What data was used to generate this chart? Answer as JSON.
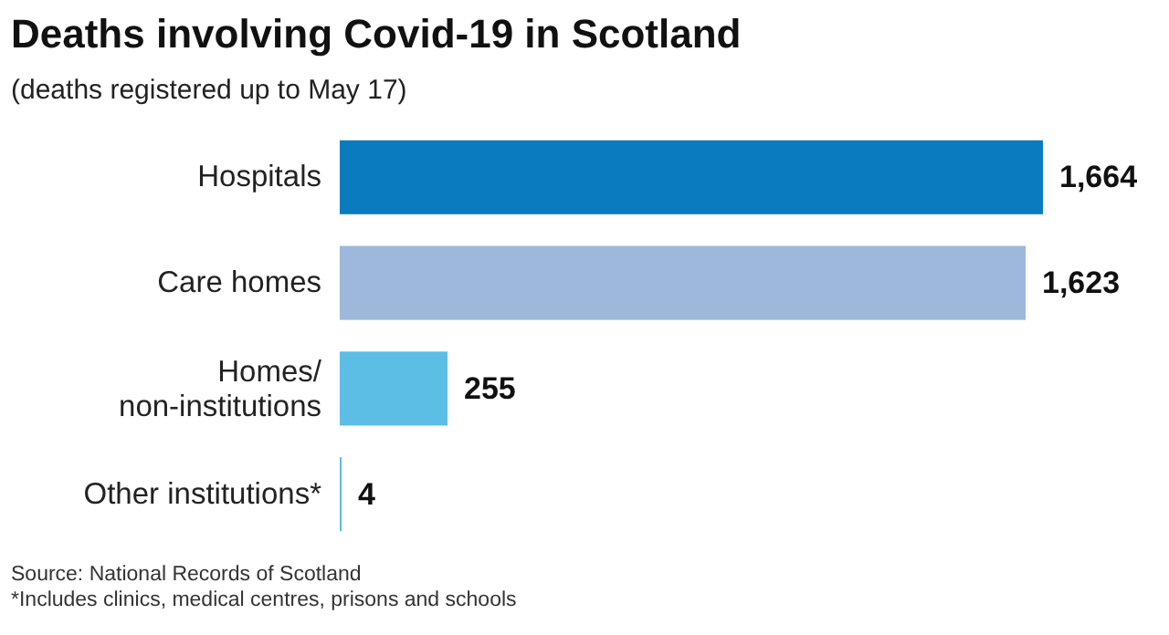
{
  "chart_data": {
    "type": "bar",
    "orientation": "horizontal",
    "title": "Deaths involving Covid-19 in Scotland",
    "subtitle": "(deaths registered up to May 17)",
    "categories": [
      "Hospitals",
      "Care homes",
      "Homes/ non-institutions",
      "Other institutions*"
    ],
    "values": [
      1664,
      1623,
      255,
      4
    ],
    "colors": [
      "#0a7bbf",
      "#9db8da",
      "#5cbde5",
      "#5cbde5"
    ],
    "value_labels": [
      "1,664",
      "1,623",
      "255",
      "4"
    ],
    "annotations": [
      "Source: National Records of Scotland",
      "*Includes clinics, medical centres, prisons and schools"
    ]
  }
}
